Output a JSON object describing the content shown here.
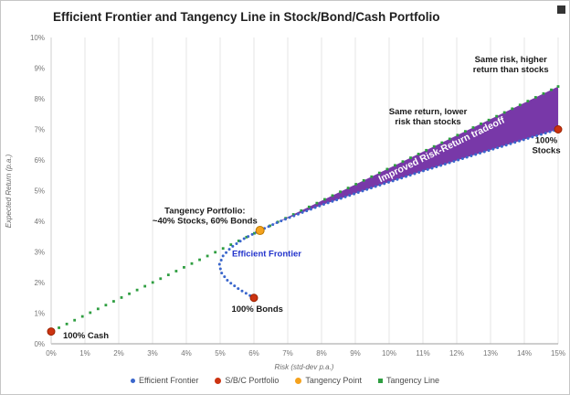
{
  "icons": {
    "chart_menu": "dark-square"
  },
  "chart_data": {
    "type": "scatter",
    "title": "Efficient Frontier and Tangency Line in Stock/Bond/Cash Portfolio",
    "xlabel": "Risk (std-dev p.a.)",
    "ylabel": "Expected Return (p.a.)",
    "xlim": [
      0,
      15
    ],
    "ylim": [
      0,
      10
    ],
    "grid": "vertical",
    "x_ticks": {
      "values": [
        0,
        1,
        2,
        3,
        4,
        5,
        6,
        7,
        8,
        9,
        10,
        11,
        12,
        13,
        14,
        15
      ],
      "labels": [
        "0%",
        "1%",
        "2%",
        "3%",
        "4%",
        "5%",
        "6%",
        "7%",
        "8%",
        "9%",
        "10%",
        "11%",
        "12%",
        "13%",
        "14%",
        "15%"
      ]
    },
    "y_ticks": {
      "values": [
        0,
        1,
        2,
        3,
        4,
        5,
        6,
        7,
        8,
        9,
        10
      ],
      "labels": [
        "0%",
        "1%",
        "2%",
        "3%",
        "4%",
        "5%",
        "6%",
        "7%",
        "8%",
        "9%",
        "10%"
      ]
    },
    "series": [
      {
        "name": "Tangency Line",
        "type": "dotted_line",
        "color": "#2f9e41",
        "marker": "square",
        "points": [
          [
            0,
            0.4
          ],
          [
            15,
            8.4
          ]
        ]
      },
      {
        "name": "Efficient Frontier",
        "type": "dotted_curve",
        "color": "#3a66cc",
        "marker": "dot",
        "points": [
          [
            6.0,
            1.5
          ],
          [
            5.56,
            1.78
          ],
          [
            5.23,
            2.05
          ],
          [
            5.03,
            2.33
          ],
          [
            4.98,
            2.6
          ],
          [
            5.09,
            2.88
          ],
          [
            5.33,
            3.15
          ],
          [
            5.7,
            3.43
          ],
          [
            6.18,
            3.7
          ],
          [
            6.73,
            3.98
          ],
          [
            7.35,
            4.25
          ],
          [
            8.01,
            4.53
          ],
          [
            8.72,
            4.8
          ],
          [
            9.45,
            5.08
          ],
          [
            10.2,
            5.35
          ],
          [
            10.97,
            5.63
          ],
          [
            11.76,
            5.9
          ],
          [
            12.56,
            6.18
          ],
          [
            13.36,
            6.45
          ],
          [
            14.18,
            6.73
          ],
          [
            15.0,
            7.0
          ]
        ]
      },
      {
        "name": "S/B/C Portfolio",
        "type": "points",
        "color": "#cc3311",
        "stroke": "#992200",
        "marker": "circle",
        "size": 4,
        "points": [
          [
            0,
            0.4
          ],
          [
            6,
            1.5
          ],
          [
            15,
            7
          ]
        ]
      },
      {
        "name": "Tangency Point",
        "type": "points",
        "color": "#f5a21d",
        "stroke": "#bd7a00",
        "marker": "circle",
        "size": 4.5,
        "points": [
          [
            6.18,
            3.7
          ]
        ]
      }
    ],
    "wedge": {
      "fill": "#7838a8",
      "label": "Improved Risk-Return tradeoff",
      "label_color": "#ffffff",
      "tangency": [
        6.18,
        3.7
      ],
      "line": [
        [
          0,
          0.4
        ],
        [
          15,
          8.4
        ]
      ]
    },
    "annotations": [
      {
        "name": "annotation-same-risk",
        "lines": [
          "Same risk, higher",
          "return than stocks"
        ],
        "x": 13.6,
        "y": 9.2,
        "anchor": "middle",
        "color": "#1a1a1a"
      },
      {
        "name": "annotation-same-return",
        "lines": [
          "Same return, lower",
          "risk than stocks"
        ],
        "x": 11.15,
        "y": 7.5,
        "anchor": "middle",
        "color": "#1a1a1a"
      },
      {
        "name": "annotation-tangency-portfolio",
        "lines": [
          "Tangency Portfolio:",
          "~40% Stocks, 60% Bonds"
        ],
        "x": 4.55,
        "y": 4.25,
        "anchor": "middle",
        "color": "#1a1a1a"
      },
      {
        "name": "annotation-efficient-frontier",
        "lines": [
          "Efficient Frontier"
        ],
        "x": 5.35,
        "y": 2.85,
        "anchor": "start",
        "color": "#2233cc"
      },
      {
        "name": "annotation-100-cash",
        "lines": [
          "100% Cash"
        ],
        "x": 0.35,
        "y": 0.18,
        "anchor": "start",
        "color": "#1a1a1a"
      },
      {
        "name": "annotation-100-bonds",
        "lines": [
          "100% Bonds"
        ],
        "x": 6.1,
        "y": 1.05,
        "anchor": "middle",
        "color": "#1a1a1a"
      },
      {
        "name": "annotation-100-stocks",
        "lines": [
          "100%",
          "Stocks"
        ],
        "x": 14.65,
        "y": 6.55,
        "anchor": "middle",
        "color": "#1a1a1a"
      }
    ],
    "legend": {
      "position": "bottom",
      "items": [
        {
          "label": "Efficient Frontier",
          "color": "#3a66cc",
          "marker": "dot"
        },
        {
          "label": "S/B/C Portfolio",
          "color": "#cc3311",
          "marker": "circle"
        },
        {
          "label": "Tangency Point",
          "color": "#f5a21d",
          "marker": "circle"
        },
        {
          "label": "Tangency Line",
          "color": "#2f9e41",
          "marker": "square"
        }
      ]
    }
  }
}
